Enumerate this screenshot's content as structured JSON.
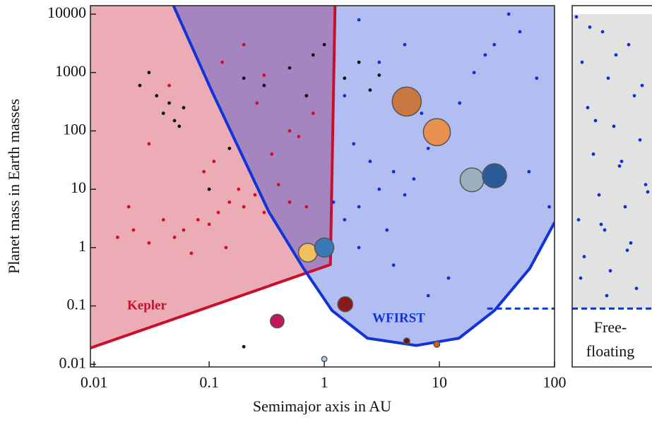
{
  "chart_data": {
    "type": "scatter",
    "x_label": "Semimajor axis in AU",
    "y_label": "Planet mass in Earth masses",
    "log_x": true,
    "log_y": true,
    "xlim": [
      0.0093,
      100
    ],
    "ylim": [
      0.009,
      14000
    ],
    "xticks": [
      0.01,
      0.1,
      1,
      10,
      100
    ],
    "yticks": [
      0.01,
      0.1,
      1,
      10,
      100,
      1000,
      10000
    ],
    "regions": [
      {
        "name": "Kepler",
        "color": "#c8102e",
        "x": [
          0.0093,
          1.13,
          1.24
        ],
        "y": [
          0.019,
          0.51,
          14000
        ]
      },
      {
        "name": "WFIRST",
        "color": "#1034d8",
        "x": [
          0.049,
          0.106,
          0.33,
          0.66,
          1.17,
          2.37,
          6.3,
          14.8,
          30,
          61,
          100
        ],
        "y": [
          14000,
          470,
          4.1,
          0.44,
          0.083,
          0.028,
          0.021,
          0.028,
          0.083,
          0.44,
          2.7
        ]
      }
    ],
    "threshold": 0.09,
    "threshold_from": 26,
    "series": [
      {
        "color": "#d01020",
        "x": [
          0.12,
          0.15,
          0.08,
          0.2,
          0.1,
          0.25,
          0.06,
          0.3,
          0.18,
          0.05,
          0.04,
          0.4,
          0.5,
          0.03,
          0.022,
          0.7,
          0.09,
          0.14,
          0.11,
          0.35,
          0.07,
          0.6,
          0.02,
          0.016,
          0.8,
          0.045,
          0.26,
          0.13,
          0.3,
          0.5,
          0.2,
          0.03
        ],
        "values": [
          4,
          6,
          3,
          5,
          2.5,
          8,
          2,
          4,
          10,
          1.5,
          3,
          12,
          6,
          1.2,
          2,
          5,
          20,
          1,
          30,
          40,
          0.8,
          80,
          5,
          1.5,
          200,
          600,
          300,
          1500,
          900,
          100,
          3000,
          60
        ]
      },
      {
        "color": "#111111",
        "x": [
          0.04,
          0.05,
          0.045,
          0.06,
          0.035,
          0.055,
          0.025,
          0.03,
          0.5,
          0.8,
          1.5,
          2,
          0.3,
          1,
          2.5,
          3,
          0.7,
          0.15,
          0.2,
          0.1,
          0.2
        ],
        "values": [
          200,
          150,
          300,
          250,
          400,
          120,
          600,
          1000,
          1200,
          2000,
          800,
          1500,
          600,
          3000,
          500,
          900,
          400,
          50,
          800,
          10,
          0.02
        ]
      },
      {
        "color": "#1030d0",
        "x": [
          3,
          4,
          2,
          5,
          2.5,
          6,
          1.5,
          8,
          3.5,
          1.2,
          10,
          15,
          20,
          30,
          50,
          70,
          4,
          2,
          7,
          1.8,
          12,
          25,
          40,
          3,
          5,
          1.5,
          2,
          8,
          60,
          90
        ],
        "values": [
          10,
          20,
          5,
          8,
          30,
          15,
          3,
          50,
          2,
          6,
          100,
          300,
          1000,
          3000,
          5000,
          800,
          0.5,
          1,
          200,
          60,
          0.3,
          2000,
          10000,
          1500,
          3000,
          400,
          8000,
          0.15,
          20,
          5
        ]
      }
    ],
    "planets": {
      "x": [
        0.39,
        0.72,
        1,
        1.52,
        5.2,
        9.5,
        19.2,
        30.1,
        1,
        5.2,
        9.5
      ],
      "values": [
        0.055,
        0.82,
        1,
        0.107,
        318,
        95,
        14.5,
        17,
        0.0123,
        0.025,
        0.022
      ],
      "colors": [
        "#c0185a",
        "#f0c060",
        "#3a78b8",
        "#8a1a1a",
        "#c87840",
        "#e89050",
        "#9ab0bc",
        "#2a5a98",
        "#b8d0e8",
        "#6a1010",
        "#d06020"
      ]
    },
    "free_floating": {
      "labels": [
        "Free-",
        "floating"
      ],
      "color": "#1030d0",
      "values": [
        9000,
        5000,
        3000,
        1500,
        800,
        400,
        250,
        120,
        70,
        40,
        25,
        12,
        8,
        5,
        3,
        2,
        1.2,
        0.7,
        0.4,
        0.2,
        6000,
        2000,
        600,
        150,
        30,
        9,
        2.5,
        0.9,
        0.3,
        0.15
      ]
    }
  }
}
